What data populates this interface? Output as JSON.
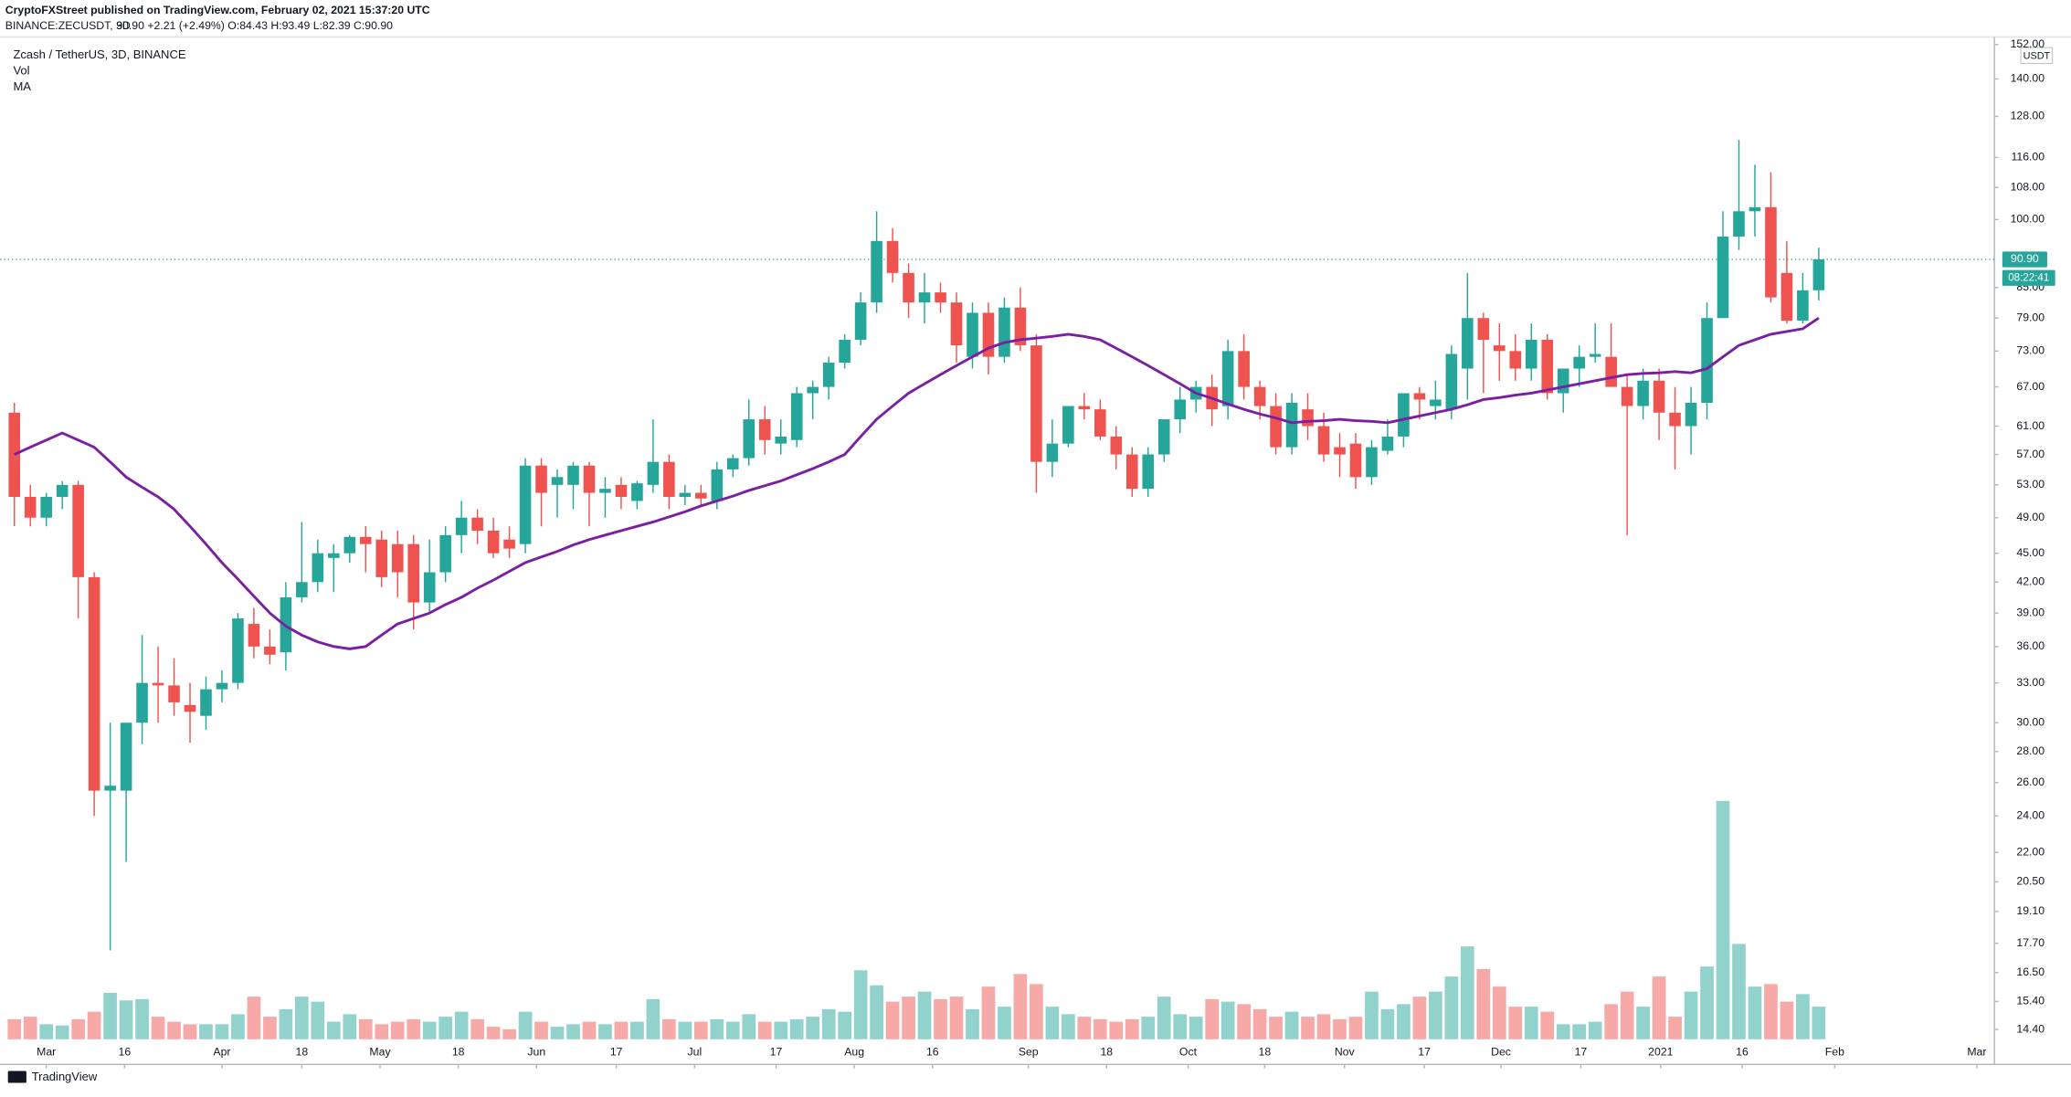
{
  "header": {
    "published": "CryptoFXStreet published on TradingView.com, February 02, 2021 15:37:20 UTC",
    "symbol": "BINANCE:ZECUSDT, 3D",
    "quote": "90.90 +2.21 (+2.49%) O:84.43 H:93.49 L:82.39 C:90.90"
  },
  "footer": "TradingView",
  "chart_data": {
    "type": "candlestick",
    "title": "Zcash / TetherUS, 3D, BINANCE",
    "y_axis_label": "USDT",
    "log_scale": true,
    "grid": false,
    "up_color": "#26a69a",
    "down_color": "#ef5350",
    "open": [
      63,
      51.5,
      49,
      51.5,
      53,
      42.5,
      25.5,
      25.5,
      30,
      33,
      32.8,
      31.3,
      30.5,
      32.5,
      33,
      38,
      36,
      35.5,
      40.5,
      42,
      44.5,
      45,
      46.8,
      46.5,
      46,
      46,
      40,
      43,
      47,
      49,
      47.5,
      46.5,
      46,
      55.5,
      53,
      53,
      55.5,
      52,
      53,
      51,
      53,
      56,
      51.5,
      52,
      51,
      55,
      56.5,
      62,
      58.5,
      59,
      66,
      67,
      71,
      75,
      82,
      95,
      88,
      82,
      84,
      82,
      72,
      80,
      72,
      81,
      74,
      56,
      58.5,
      64,
      63.5,
      59.5,
      57,
      52.5,
      57,
      62,
      65,
      67,
      64,
      73,
      67,
      64,
      58,
      63.5,
      61,
      58,
      58.5,
      54,
      57.5,
      59.5,
      66,
      64,
      63.5,
      70,
      79,
      74,
      73,
      70,
      75,
      66,
      70,
      72,
      72,
      67,
      64,
      68,
      63,
      61,
      64.5,
      79,
      96,
      102,
      103,
      88,
      78.5,
      84.43
    ],
    "high": [
      64.5,
      53,
      52,
      53.5,
      53.5,
      43,
      30,
      30,
      37,
      36,
      35,
      33,
      33.5,
      34,
      39,
      39.5,
      37.5,
      42,
      48.5,
      46.5,
      46,
      47,
      48,
      47.5,
      47.5,
      47,
      46.5,
      48,
      51,
      50,
      49,
      48,
      56.5,
      56.5,
      55,
      56,
      56,
      54,
      54,
      53.5,
      62,
      57,
      53,
      53,
      56,
      57,
      65,
      64,
      62,
      67,
      68,
      72,
      76,
      84,
      102,
      98,
      90,
      88,
      86,
      84,
      82,
      82,
      83,
      85,
      76,
      62,
      64,
      66,
      65,
      61,
      58,
      58,
      62,
      67,
      68,
      69,
      75,
      76,
      68,
      66,
      66,
      66,
      63,
      60,
      60,
      59,
      62,
      66,
      67,
      68,
      74,
      88,
      80,
      78,
      76,
      78,
      76,
      70,
      74,
      78,
      78,
      69,
      70,
      70,
      67,
      67,
      82,
      102,
      121,
      114,
      112,
      95,
      88,
      93.49
    ],
    "low": [
      48,
      48,
      48,
      50,
      38.5,
      24,
      17.4,
      21.5,
      28.5,
      30,
      30.5,
      28.6,
      29.5,
      31.5,
      32.5,
      35,
      34.5,
      34,
      40,
      41,
      41,
      44,
      43,
      41.5,
      40.5,
      37.5,
      39,
      42,
      45,
      46,
      44.5,
      44.5,
      45,
      48,
      49,
      50,
      48,
      49,
      50,
      50,
      52,
      50,
      50.5,
      50.5,
      50,
      54,
      55.5,
      57,
      57,
      58,
      62,
      65,
      70,
      74,
      80,
      86,
      79,
      78,
      80,
      71,
      70,
      69,
      71,
      73,
      52,
      54,
      58,
      62,
      59,
      55,
      51.5,
      51.5,
      56,
      60,
      63,
      61,
      62,
      65,
      62,
      57,
      57,
      59,
      56,
      54,
      52.5,
      53,
      57,
      58,
      62,
      62,
      62,
      65,
      66,
      68,
      68,
      68,
      65,
      63,
      67,
      71,
      67,
      47,
      62,
      59,
      55,
      57,
      62,
      79,
      93,
      96,
      82,
      78,
      78,
      82.39
    ],
    "close": [
      51.5,
      49,
      51.5,
      53,
      42.5,
      25.5,
      25.8,
      30,
      33,
      32.8,
      31.5,
      30.8,
      32.5,
      33,
      38.5,
      36,
      35.3,
      40.5,
      42,
      45,
      45,
      46.8,
      46,
      42.5,
      43,
      40,
      43,
      47,
      49,
      47.5,
      45,
      45.5,
      55.5,
      52,
      54,
      55.5,
      52,
      52.5,
      51.5,
      53.2,
      56,
      51.5,
      52,
      51.3,
      55,
      56.5,
      62,
      59,
      59.5,
      66,
      67,
      71,
      75,
      82,
      95,
      88,
      82,
      84,
      82,
      74,
      80,
      72,
      81,
      74,
      56,
      58.5,
      64,
      63.5,
      59.5,
      57,
      52.5,
      57,
      62,
      65,
      67,
      63.5,
      73,
      67,
      64,
      58,
      64.5,
      61,
      57,
      57,
      54,
      58,
      59.5,
      66,
      65,
      65,
      72.5,
      79,
      75,
      73,
      70,
      75,
      66,
      70,
      72,
      72.5,
      67,
      64,
      68,
      63,
      61,
      64.5,
      79,
      96,
      102,
      103,
      83,
      78.5,
      84.43,
      90.9
    ],
    "volume": {
      "name": "Vol",
      "up_color": "#92d2cc",
      "down_color": "#f7a9a7",
      "values": [
        16,
        18,
        12,
        11,
        16,
        22,
        37,
        31,
        32,
        18,
        14,
        12,
        12,
        12,
        20,
        34,
        18,
        24,
        34,
        30,
        14,
        20,
        16,
        12,
        14,
        16,
        14,
        18,
        22,
        16,
        10,
        8,
        22,
        14,
        10,
        12,
        14,
        12,
        14,
        14,
        32,
        16,
        14,
        14,
        16,
        14,
        20,
        14,
        14,
        16,
        18,
        24,
        22,
        55,
        43,
        30,
        34,
        38,
        32,
        34,
        24,
        42,
        26,
        52,
        44,
        26,
        20,
        18,
        16,
        14,
        16,
        18,
        34,
        20,
        18,
        32,
        30,
        28,
        24,
        18,
        22,
        18,
        20,
        16,
        18,
        38,
        24,
        28,
        34,
        38,
        50,
        74,
        56,
        42,
        26,
        26,
        22,
        12,
        12,
        14,
        28,
        38,
        26,
        50,
        18,
        38,
        58,
        190,
        76,
        42,
        44,
        30,
        36,
        26
      ],
      "vlim": [
        0,
        200
      ]
    },
    "ma": {
      "name": "MA",
      "color": "#7b1fa2",
      "values": [
        57,
        58,
        59,
        60,
        59,
        58,
        56,
        54,
        52.7,
        51.5,
        50,
        48,
        46,
        44,
        42.3,
        40.6,
        39,
        37.8,
        37,
        36.4,
        36,
        35.8,
        36,
        37,
        38,
        38.5,
        39,
        39.8,
        40.5,
        41.4,
        42.2,
        43.1,
        44,
        44.6,
        45.2,
        45.9,
        46.5,
        47,
        47.5,
        48,
        48.5,
        49.1,
        49.7,
        50.4,
        51,
        51.6,
        52.3,
        52.9,
        53.5,
        54.3,
        55.1,
        56,
        57,
        59.5,
        62,
        64,
        66,
        67.5,
        69,
        70.5,
        72,
        73.5,
        74.5,
        75,
        75.3,
        75.6,
        76,
        75.6,
        75,
        73.5,
        72,
        70.5,
        69,
        67.5,
        66,
        65.2,
        64.3,
        63.5,
        62.8,
        62.2,
        61.5,
        61.7,
        61.8,
        62,
        61.8,
        61.7,
        61.5,
        62,
        62.5,
        63,
        63.5,
        64.2,
        65,
        65.3,
        65.7,
        66,
        66.5,
        67,
        67.5,
        68,
        68.5,
        69,
        69.2,
        69.3,
        69.5,
        69.3,
        70,
        72,
        74,
        75,
        76,
        76.5,
        77,
        79
      ]
    },
    "xlim": [
      -0.9,
      124.0
    ],
    "xticks": [
      {
        "value": 2.0,
        "label": "Mar"
      },
      {
        "value": 6.9,
        "label": "16"
      },
      {
        "value": 13.0,
        "label": "Apr"
      },
      {
        "value": 18.0,
        "label": "18"
      },
      {
        "value": 22.9,
        "label": "May"
      },
      {
        "value": 27.8,
        "label": "18"
      },
      {
        "value": 32.7,
        "label": "Jun"
      },
      {
        "value": 37.7,
        "label": "17"
      },
      {
        "value": 42.6,
        "label": "Jul"
      },
      {
        "value": 47.7,
        "label": "17"
      },
      {
        "value": 52.6,
        "label": "Aug"
      },
      {
        "value": 57.5,
        "label": "16"
      },
      {
        "value": 63.5,
        "label": "Sep"
      },
      {
        "value": 68.4,
        "label": "18"
      },
      {
        "value": 73.5,
        "label": "Oct"
      },
      {
        "value": 78.3,
        "label": "18"
      },
      {
        "value": 83.3,
        "label": "Nov"
      },
      {
        "value": 88.3,
        "label": "17"
      },
      {
        "value": 93.1,
        "label": "Dec"
      },
      {
        "value": 98.1,
        "label": "17"
      },
      {
        "value": 103.1,
        "label": "2021"
      },
      {
        "value": 108.2,
        "label": "16"
      },
      {
        "value": 114.0,
        "label": "Feb"
      },
      {
        "value": 122.9,
        "label": "Mar"
      }
    ],
    "ylim": [
      13.5,
      153.8
    ],
    "yticks": [
      {
        "value": 152,
        "label": "152.00"
      },
      {
        "value": 140,
        "label": "140.00"
      },
      {
        "value": 128,
        "label": "128.00"
      },
      {
        "value": 116,
        "label": "116.00"
      },
      {
        "value": 108,
        "label": "108.00"
      },
      {
        "value": 100,
        "label": "100.00"
      },
      {
        "value": 85,
        "label": "85.00"
      },
      {
        "value": 79,
        "label": "79.00"
      },
      {
        "value": 73,
        "label": "73.00"
      },
      {
        "value": 67,
        "label": "67.00"
      },
      {
        "value": 61,
        "label": "61.00"
      },
      {
        "value": 57,
        "label": "57.00"
      },
      {
        "value": 53,
        "label": "53.00"
      },
      {
        "value": 49,
        "label": "49.00"
      },
      {
        "value": 45,
        "label": "45.00"
      },
      {
        "value": 42,
        "label": "42.00"
      },
      {
        "value": 39,
        "label": "39.00"
      },
      {
        "value": 36,
        "label": "36.00"
      },
      {
        "value": 33,
        "label": "33.00"
      },
      {
        "value": 30,
        "label": "30.00"
      },
      {
        "value": 28,
        "label": "28.00"
      },
      {
        "value": 26,
        "label": "26.00"
      },
      {
        "value": 24,
        "label": "24.00"
      },
      {
        "value": 22,
        "label": "22.00"
      },
      {
        "value": 20.5,
        "label": "20.50"
      },
      {
        "value": 19.1,
        "label": "19.10"
      },
      {
        "value": 17.7,
        "label": "17.70"
      },
      {
        "value": 16.5,
        "label": "16.50"
      },
      {
        "value": 15.4,
        "label": "15.40"
      },
      {
        "value": 14.4,
        "label": "14.40"
      }
    ],
    "last_price": {
      "value": 90.9,
      "label": "90.90"
    },
    "countdown": "08:22:41"
  }
}
